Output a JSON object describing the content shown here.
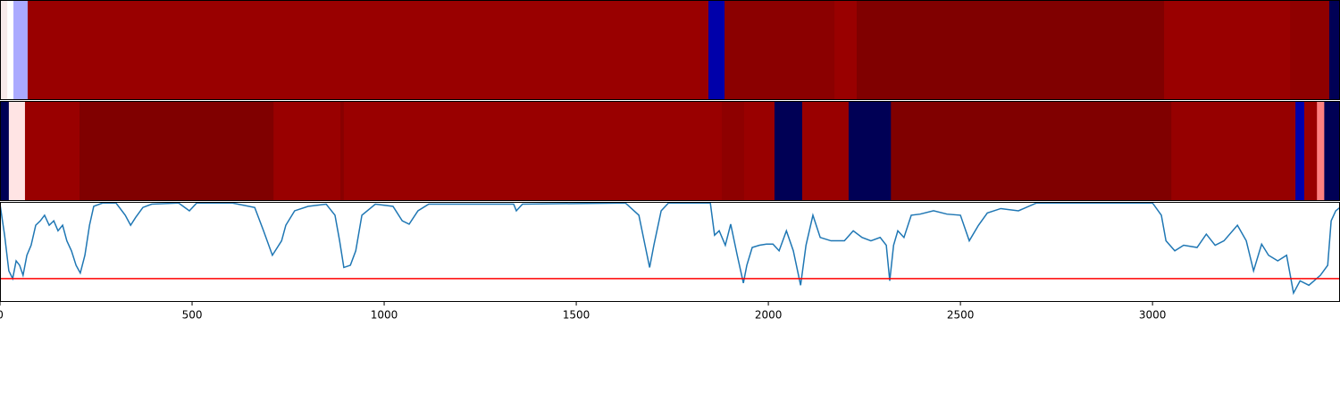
{
  "chart_data": [
    {
      "type": "strip",
      "edges": [
        0,
        19,
        35,
        72,
        1844,
        1886,
        2172,
        2230,
        3030,
        3358,
        3460,
        3488
      ],
      "colors": [
        "#f6eaea",
        "#ffffff",
        "#aaaaff",
        "#990000",
        "#0000aa",
        "#8b0000",
        "#990000",
        "#800000",
        "#990000",
        "#8f0000",
        "#000055"
      ],
      "xlim": [
        0,
        3488
      ]
    },
    {
      "type": "strip",
      "edges": [
        0,
        23,
        65,
        207,
        712,
        886,
        895,
        1879,
        1937,
        2016,
        2088,
        2209,
        2319,
        3049,
        3372,
        3395,
        3428,
        3447,
        3488
      ],
      "colors": [
        "#000055",
        "#ffe4e4",
        "#990000",
        "#800000",
        "#990000",
        "#880000",
        "#990000",
        "#8e0000",
        "#990000",
        "#000055",
        "#990000",
        "#000055",
        "#800000",
        "#960000",
        "#0000aa",
        "#990000",
        "#ff8080",
        "#000055"
      ],
      "xlim": [
        0,
        3488
      ]
    },
    {
      "type": "line",
      "x": [
        0,
        12,
        23,
        33,
        42,
        51,
        60,
        70,
        81,
        93,
        105,
        116,
        128,
        140,
        151,
        163,
        174,
        186,
        198,
        209,
        221,
        233,
        244,
        267,
        302,
        326,
        340,
        353,
        372,
        395,
        465,
        493,
        512,
        605,
        663,
        686,
        709,
        733,
        744,
        767,
        802,
        849,
        872,
        884,
        895,
        912,
        926,
        942,
        977,
        1023,
        1047,
        1065,
        1088,
        1116,
        1337,
        1344,
        1360,
        1628,
        1663,
        1679,
        1691,
        1702,
        1721,
        1740,
        1849,
        1860,
        1872,
        1888,
        1902,
        1919,
        1935,
        1944,
        1958,
        1977,
        1995,
        2012,
        2028,
        2047,
        2065,
        2084,
        2098,
        2116,
        2135,
        2163,
        2198,
        2221,
        2244,
        2267,
        2291,
        2307,
        2316,
        2326,
        2337,
        2353,
        2372,
        2395,
        2430,
        2465,
        2500,
        2523,
        2547,
        2570,
        2605,
        2651,
        2698,
        3000,
        3023,
        3035,
        3058,
        3081,
        3116,
        3140,
        3163,
        3186,
        3221,
        3244,
        3263,
        3284,
        3302,
        3326,
        3349,
        3367,
        3384,
        3407,
        3437,
        3456,
        3465,
        3477,
        3488
      ],
      "series": [
        {
          "color": "#1f77b4",
          "values": [
            0.98,
            0.7,
            0.38,
            0.31,
            0.47,
            0.43,
            0.34,
            0.52,
            0.61,
            0.79,
            0.83,
            0.88,
            0.79,
            0.83,
            0.74,
            0.79,
            0.65,
            0.56,
            0.43,
            0.36,
            0.52,
            0.79,
            0.96,
            0.99,
            0.99,
            0.88,
            0.79,
            0.86,
            0.95,
            0.98,
            0.99,
            0.92,
            0.99,
            0.99,
            0.95,
            0.74,
            0.52,
            0.65,
            0.79,
            0.92,
            0.96,
            0.98,
            0.88,
            0.65,
            0.41,
            0.43,
            0.56,
            0.88,
            0.98,
            0.96,
            0.83,
            0.8,
            0.92,
            0.98,
            0.98,
            0.92,
            0.98,
            0.99,
            0.88,
            0.61,
            0.41,
            0.61,
            0.92,
            0.99,
            0.99,
            0.7,
            0.74,
            0.61,
            0.8,
            0.52,
            0.27,
            0.43,
            0.59,
            0.61,
            0.62,
            0.62,
            0.56,
            0.74,
            0.56,
            0.25,
            0.61,
            0.88,
            0.68,
            0.65,
            0.65,
            0.74,
            0.68,
            0.65,
            0.68,
            0.61,
            0.29,
            0.61,
            0.74,
            0.68,
            0.88,
            0.89,
            0.92,
            0.89,
            0.88,
            0.65,
            0.79,
            0.9,
            0.94,
            0.92,
            0.99,
            0.99,
            0.88,
            0.65,
            0.56,
            0.61,
            0.59,
            0.71,
            0.61,
            0.65,
            0.79,
            0.65,
            0.38,
            0.62,
            0.52,
            0.47,
            0.52,
            0.18,
            0.29,
            0.25,
            0.34,
            0.43,
            0.83,
            0.92,
            0.95
          ]
        }
      ],
      "threshold": {
        "value": 0.31,
        "color": "#ff0000"
      },
      "xlim": [
        0,
        3488
      ],
      "ylim": [
        0.1,
        1.0
      ],
      "xticks": [
        0,
        500,
        1000,
        1500,
        2000,
        2500,
        3000
      ]
    }
  ]
}
